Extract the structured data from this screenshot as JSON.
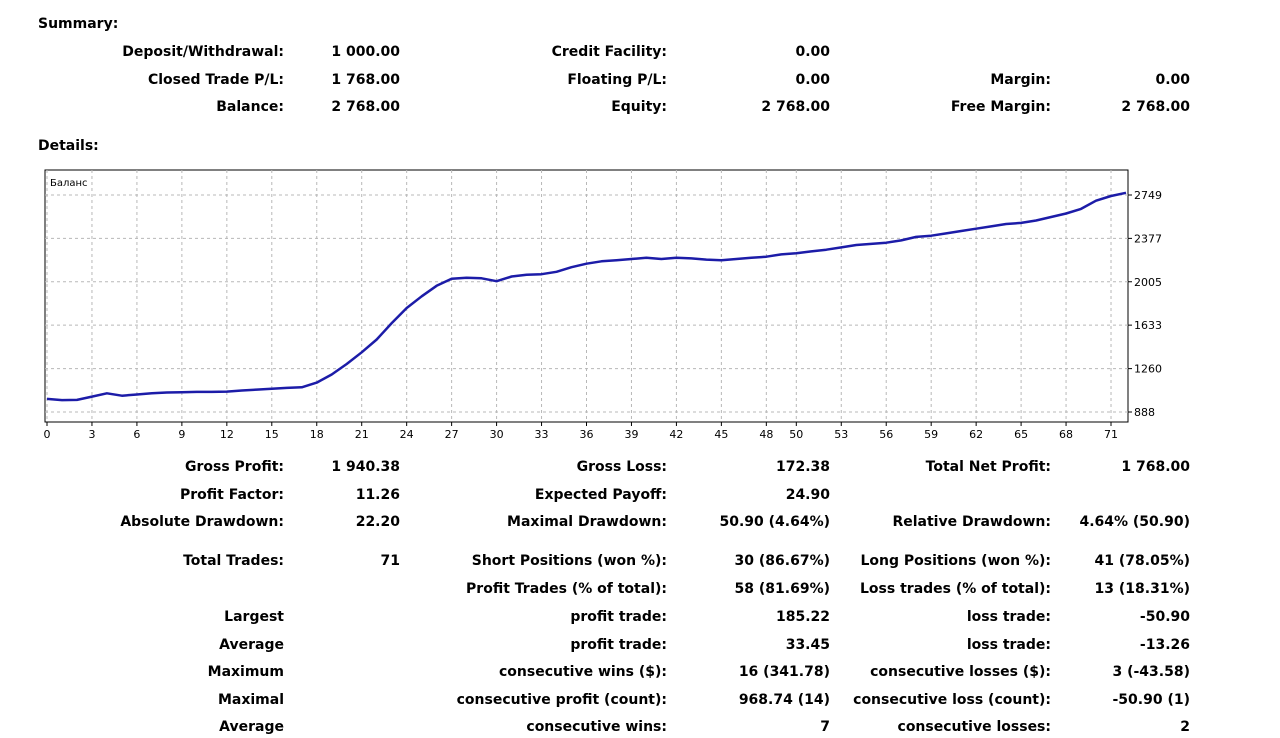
{
  "summary": {
    "title": "Summary:",
    "deposit_label": "Deposit/Withdrawal:",
    "deposit_value": "1 000.00",
    "credit_label": "Credit Facility:",
    "credit_value": "0.00",
    "closed_label": "Closed Trade P/L:",
    "closed_value": "1 768.00",
    "floating_label": "Floating P/L:",
    "floating_value": "0.00",
    "margin_label": "Margin:",
    "margin_value": "0.00",
    "balance_label": "Balance:",
    "balance_value": "2 768.00",
    "equity_label": "Equity:",
    "equity_value": "2 768.00",
    "free_margin_label": "Free Margin:",
    "free_margin_value": "2 768.00"
  },
  "details": {
    "title": "Details:"
  },
  "chart_data": {
    "type": "line",
    "legend": "Баланс",
    "series": [
      {
        "name": "Баланс",
        "color": "#1c1ca8"
      }
    ],
    "x": [
      0,
      1,
      2,
      3,
      4,
      5,
      6,
      7,
      8,
      9,
      10,
      11,
      12,
      13,
      14,
      15,
      16,
      17,
      18,
      19,
      20,
      21,
      22,
      23,
      24,
      25,
      26,
      27,
      28,
      29,
      30,
      31,
      32,
      33,
      34,
      35,
      36,
      37,
      38,
      39,
      40,
      41,
      42,
      43,
      44,
      45,
      46,
      47,
      48,
      49,
      50,
      51,
      52,
      53,
      54,
      55,
      56,
      57,
      58,
      59,
      60,
      61,
      62,
      63,
      64,
      65,
      66,
      67,
      68,
      69,
      70,
      71,
      72
    ],
    "y": [
      1000,
      990,
      992,
      1020,
      1048,
      1028,
      1038,
      1048,
      1055,
      1058,
      1060,
      1060,
      1063,
      1072,
      1080,
      1088,
      1095,
      1100,
      1140,
      1210,
      1300,
      1400,
      1510,
      1650,
      1780,
      1880,
      1970,
      2030,
      2040,
      2035,
      2010,
      2050,
      2065,
      2070,
      2090,
      2130,
      2160,
      2180,
      2190,
      2200,
      2210,
      2200,
      2210,
      2205,
      2195,
      2190,
      2200,
      2210,
      2220,
      2240,
      2250,
      2265,
      2280,
      2300,
      2320,
      2330,
      2340,
      2360,
      2390,
      2400,
      2420,
      2440,
      2460,
      2480,
      2500,
      2510,
      2530,
      2560,
      2590,
      2630,
      2700,
      2740,
      2768
    ],
    "xtick_labels": [
      "0",
      "3",
      "6",
      "9",
      "12",
      "15",
      "18",
      "21",
      "24",
      "27",
      "30",
      "33",
      "36",
      "39",
      "42",
      "45",
      "48",
      "50",
      "53",
      "56",
      "59",
      "62",
      "65",
      "68",
      "71"
    ],
    "ytick_labels": [
      "2749",
      "2377",
      "2005",
      "1633",
      "1260",
      "888"
    ],
    "ylim": [
      888,
      2749
    ],
    "grid": true
  },
  "stats": {
    "gross_profit_label": "Gross Profit:",
    "gross_profit_value": "1 940.38",
    "gross_loss_label": "Gross Loss:",
    "gross_loss_value": "172.38",
    "total_net_label": "Total Net Profit:",
    "total_net_value": "1 768.00",
    "profit_factor_label": "Profit Factor:",
    "profit_factor_value": "11.26",
    "expected_payoff_label": "Expected Payoff:",
    "expected_payoff_value": "24.90",
    "abs_dd_label": "Absolute Drawdown:",
    "abs_dd_value": "22.20",
    "max_dd_label": "Maximal Drawdown:",
    "max_dd_value": "50.90 (4.64%)",
    "rel_dd_label": "Relative Drawdown:",
    "rel_dd_value": "4.64% (50.90)",
    "total_trades_label": "Total Trades:",
    "total_trades_value": "71",
    "short_label": "Short Positions (won %):",
    "short_value": "30 (86.67%)",
    "long_label": "Long Positions (won %):",
    "long_value": "41 (78.05%)",
    "profit_trades_label": "Profit Trades (% of total):",
    "profit_trades_value": "58 (81.69%)",
    "loss_trades_label": "Loss trades (% of total):",
    "loss_trades_value": "13 (18.31%)",
    "largest_label": "Largest",
    "largest_profit_label": "profit trade:",
    "largest_profit_value": "185.22",
    "largest_loss_label": "loss trade:",
    "largest_loss_value": "-50.90",
    "average_label": "Average",
    "avg_profit_label": "profit trade:",
    "avg_profit_value": "33.45",
    "avg_loss_label": "loss trade:",
    "avg_loss_value": "-13.26",
    "maximum_label": "Maximum",
    "max_cons_wins_label": "consecutive wins ($):",
    "max_cons_wins_value": "16 (341.78)",
    "max_cons_losses_label": "consecutive losses ($):",
    "max_cons_losses_value": "3 (-43.58)",
    "maximal_label": "Maximal",
    "maximal_cons_profit_label": "consecutive profit (count):",
    "maximal_cons_profit_value": "968.74 (14)",
    "maximal_cons_loss_label": "consecutive loss (count):",
    "maximal_cons_loss_value": "-50.90 (1)",
    "average2_label": "Average",
    "avg_cons_wins_label": "consecutive wins:",
    "avg_cons_wins_value": "7",
    "avg_cons_losses_label": "consecutive losses:",
    "avg_cons_losses_value": "2"
  }
}
